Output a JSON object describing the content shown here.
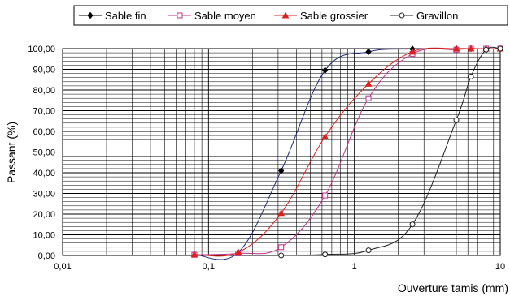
{
  "chart_data": {
    "type": "line",
    "title": "",
    "xlabel": "Ouverture tamis (mm)",
    "ylabel": "Passant (%)",
    "x_scale": "log",
    "xlim": [
      0.01,
      10
    ],
    "ylim": [
      0,
      100
    ],
    "grid": true,
    "legend_position": "top",
    "x_tick_labels": [
      "0,01",
      "0,1",
      "1",
      "10"
    ],
    "y_tick_labels": [
      "0,00",
      "10,00",
      "20,00",
      "30,00",
      "40,00",
      "50,00",
      "60,00",
      "70,00",
      "80,00",
      "90,00",
      "100,00"
    ],
    "series": [
      {
        "name": "Sable fin",
        "color": "#1f2a8a",
        "marker": "diamond-filled",
        "x": [
          0.08,
          0.16,
          0.315,
          0.63,
          1.25,
          2.5,
          5,
          6.3,
          8,
          10
        ],
        "y": [
          0.5,
          1.5,
          41,
          89.5,
          98.5,
          99.8,
          100,
          100,
          100,
          100
        ]
      },
      {
        "name": "Sable moyen",
        "color": "#c0308a",
        "marker": "square-open",
        "x": [
          0.08,
          0.16,
          0.315,
          0.63,
          1.25,
          2.5,
          5,
          6.3,
          8,
          10
        ],
        "y": [
          0.3,
          1,
          4,
          29,
          76,
          97.5,
          99.5,
          100,
          100,
          100
        ]
      },
      {
        "name": "Sable grossier",
        "color": "#e0201c",
        "marker": "triangle-filled",
        "x": [
          0.08,
          0.16,
          0.315,
          0.63,
          1.25,
          2.5,
          5,
          6.3,
          8,
          10
        ],
        "y": [
          0.5,
          1.5,
          20.5,
          57.5,
          83,
          98.5,
          100,
          100,
          100,
          100
        ]
      },
      {
        "name": "Gravillon",
        "color": "#222222",
        "marker": "circle-open",
        "x": [
          0.315,
          0.63,
          1.25,
          2.5,
          5,
          6.3,
          8,
          10
        ],
        "y": [
          0,
          0.5,
          2.5,
          15,
          65.5,
          86.5,
          99.5,
          100
        ]
      }
    ]
  }
}
